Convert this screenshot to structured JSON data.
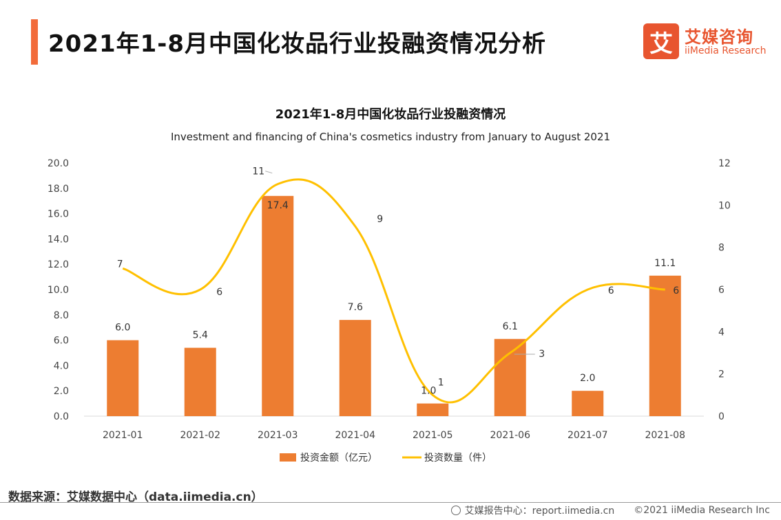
{
  "header": {
    "title": "2021年1-8月中国化妆品行业投融资情况分析",
    "accent_color": "#f26b3a"
  },
  "logo": {
    "mark": "艾",
    "name_cn": "艾媒咨询",
    "name_en": "iiMedia Research",
    "color": "#e8552f"
  },
  "chart_data": {
    "type": "bar",
    "title": "2021年1-8月中国化妆品行业投融资情况",
    "subtitle": "Investment and financing of China's cosmetics industry from January to August 2021",
    "categories": [
      "2021-01",
      "2021-02",
      "2021-03",
      "2021-04",
      "2021-05",
      "2021-06",
      "2021-07",
      "2021-08"
    ],
    "series": [
      {
        "name": "投资金额（亿元）",
        "type": "bar",
        "axis": "left",
        "color": "#ed7d31",
        "values": [
          6.0,
          5.4,
          17.4,
          7.6,
          1.0,
          6.1,
          2.0,
          11.1
        ],
        "labels": [
          "6.0",
          "5.4",
          "17.4",
          "7.6",
          "1.0",
          "6.1",
          "2.0",
          "11.1"
        ]
      },
      {
        "name": "投资数量（件）",
        "type": "line",
        "axis": "right",
        "smooth": true,
        "color": "#ffc000",
        "values": [
          7,
          6,
          11,
          9,
          1,
          3,
          6,
          6
        ],
        "labels": [
          "7",
          "6",
          "11",
          "9",
          "1",
          "3",
          "6",
          "6"
        ]
      }
    ],
    "left_axis": {
      "min": 0,
      "max": 20,
      "ticks": [
        "0.0",
        "2.0",
        "4.0",
        "6.0",
        "8.0",
        "10.0",
        "12.0",
        "14.0",
        "16.0",
        "18.0",
        "20.0"
      ]
    },
    "right_axis": {
      "min": 0,
      "max": 12,
      "ticks": [
        "0",
        "2",
        "4",
        "6",
        "8",
        "10",
        "12"
      ]
    },
    "grid": false,
    "legend_position": "bottom"
  },
  "footer": {
    "source": "数据来源：艾媒数据中心（data.iimedia.cn）",
    "report_center": "艾媒报告中心：report.iimedia.cn",
    "copyright": "©2021  iiMedia Research  Inc"
  }
}
